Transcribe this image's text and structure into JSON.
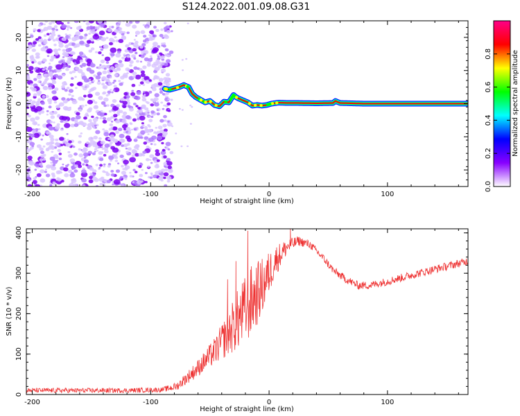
{
  "title": "S124.2022.001.09.08.G31",
  "chart_data": [
    {
      "type": "heatmap",
      "xlabel": "Height of straight line (km)",
      "ylabel": "Frequency (Hz)",
      "xlim": [
        -205,
        168
      ],
      "ylim": [
        -25,
        25
      ],
      "xticks": [
        -200,
        -100,
        0,
        100
      ],
      "yticks": [
        -20,
        -10,
        0,
        10,
        20
      ],
      "noise_region_x": [
        -205,
        -85
      ],
      "signal_track": {
        "x": [
          -88,
          -84,
          -80,
          -76,
          -72,
          -68,
          -65,
          -62,
          -58,
          -54,
          -50,
          -46,
          -42,
          -38,
          -34,
          -30,
          -28,
          -26,
          -22,
          -18,
          -14,
          -10,
          -6,
          -2,
          2,
          8,
          15,
          25,
          40,
          54,
          56,
          60,
          80,
          120,
          168
        ],
        "y": [
          4.5,
          4.2,
          4.6,
          5.0,
          5.6,
          5.0,
          3.0,
          2.0,
          1.2,
          0.4,
          0.8,
          -0.4,
          -0.8,
          0.6,
          0.4,
          2.6,
          2.0,
          1.6,
          1.0,
          0.4,
          -0.6,
          -0.4,
          -0.6,
          -0.4,
          0,
          0.3,
          0.2,
          0.2,
          0.1,
          0.2,
          0.8,
          0.2,
          0,
          0,
          0
        ]
      },
      "colorbar": {
        "label": "Normalized spectral amplitude",
        "ticks": [
          0.0,
          0.2,
          0.4,
          0.6,
          0.8
        ],
        "range": [
          0,
          1
        ],
        "colormap": [
          "#ffffff",
          "#8800ff",
          "#0000ff",
          "#00ffff",
          "#00ff00",
          "#ffff00",
          "#ff0000",
          "#ff0088"
        ]
      }
    },
    {
      "type": "line",
      "xlabel": "Height of straight line (km)",
      "ylabel": "SNR (10 * v/v)",
      "xlim": [
        -205,
        168
      ],
      "ylim": [
        0,
        410
      ],
      "xticks": [
        -200,
        -100,
        0,
        100
      ],
      "yticks": [
        0,
        100,
        200,
        300,
        400
      ],
      "color": "#ee3333",
      "series": [
        {
          "x": [
            -205,
            -180,
            -150,
            -120,
            -90,
            -78,
            -70,
            -62,
            -55,
            -45,
            -35,
            -25,
            -15,
            -5,
            5,
            15,
            25,
            35,
            45,
            55,
            65,
            75,
            85,
            100,
            120,
            140,
            168
          ],
          "y": [
            10,
            10,
            10,
            10,
            12,
            20,
            40,
            60,
            80,
            110,
            150,
            190,
            230,
            270,
            330,
            365,
            380,
            370,
            340,
            305,
            285,
            270,
            270,
            280,
            295,
            310,
            330
          ],
          "noise_amplitude": [
            6,
            6,
            6,
            6,
            6,
            10,
            15,
            20,
            25,
            35,
            55,
            80,
            90,
            70,
            40,
            20,
            12,
            10,
            10,
            10,
            10,
            10,
            10,
            10,
            10,
            10,
            10
          ]
        }
      ],
      "spikes": [
        {
          "x": -18,
          "y": 405
        },
        {
          "x": 18,
          "y": 410
        },
        {
          "x": -28,
          "y": 330
        },
        {
          "x": -35,
          "y": 285
        }
      ]
    }
  ]
}
